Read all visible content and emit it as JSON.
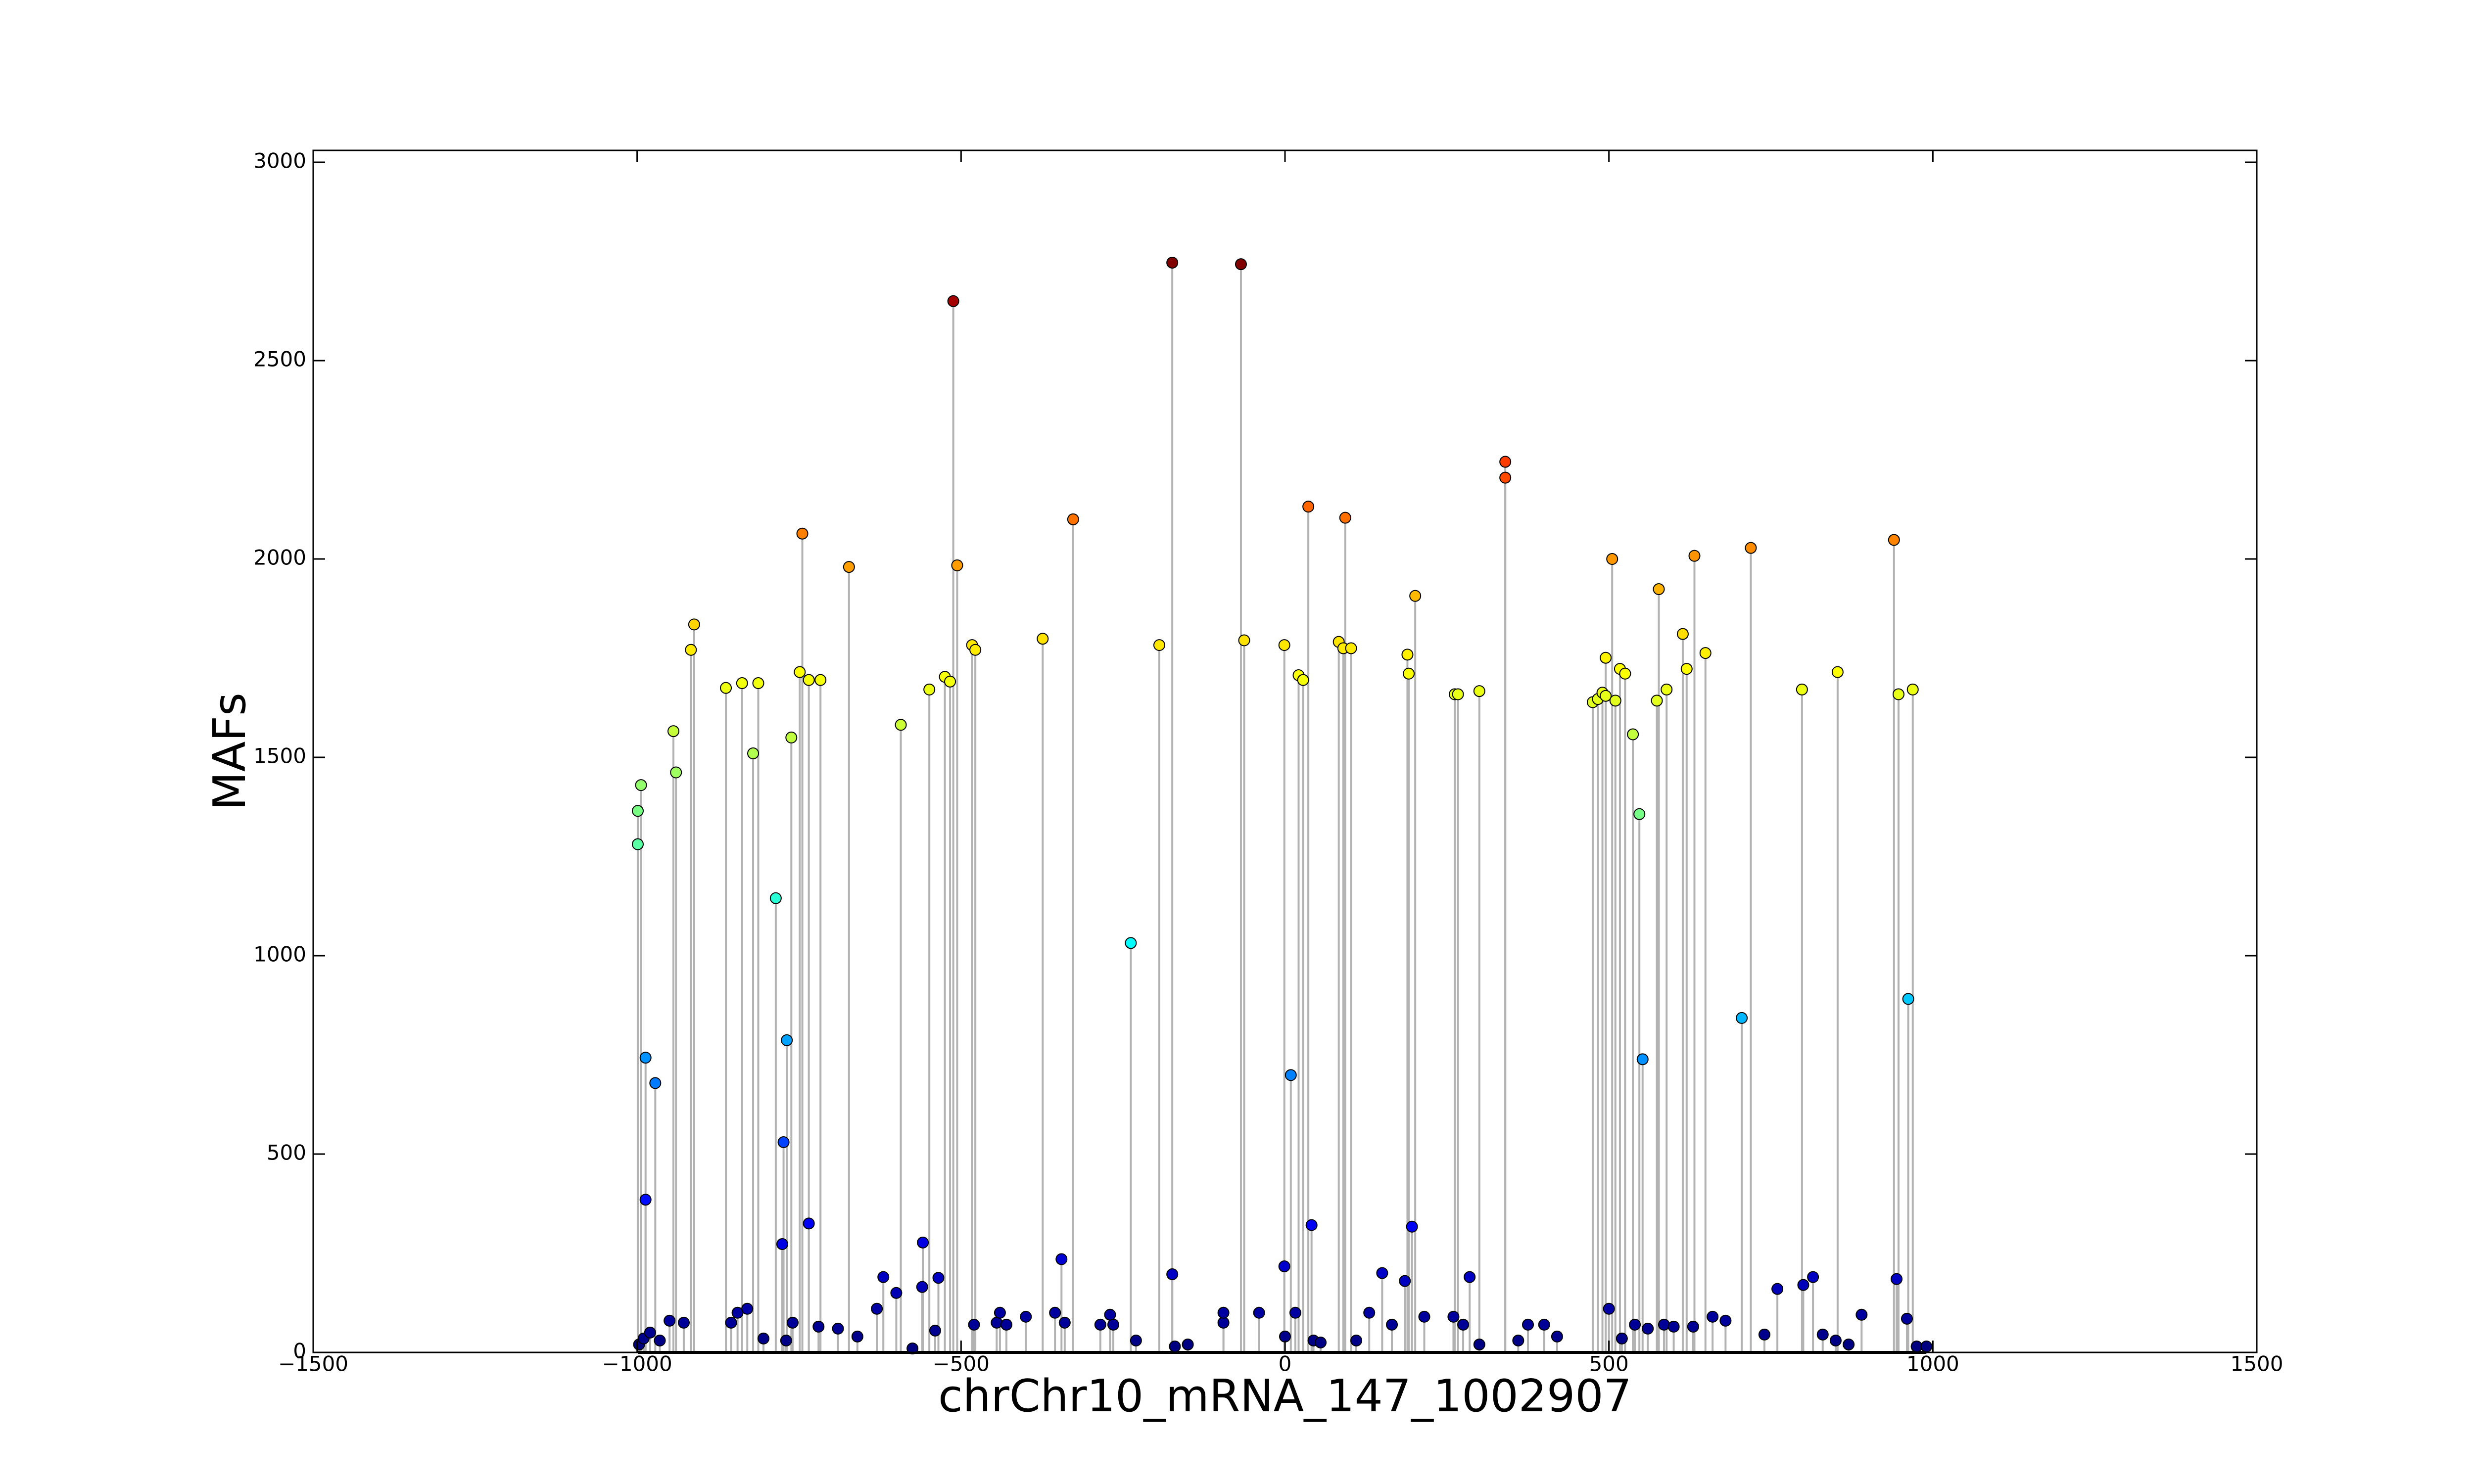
{
  "chart_data": {
    "type": "stem",
    "xlabel": "chrChr10_mRNA_147_1002907",
    "ylabel": "MAFs",
    "colormap": "jet",
    "stem_color": "#b3b3b3",
    "baseline_color": "#000000",
    "xlim": [
      -1500,
      1500
    ],
    "xticks": [
      {
        "value": -1500,
        "label": "−1500"
      },
      {
        "value": -1000,
        "label": "−1000"
      },
      {
        "value": -500,
        "label": "−500"
      },
      0,
      500,
      1000,
      1500
    ],
    "ylim": [
      0,
      3030
    ],
    "yticks": [
      0,
      500,
      1000,
      1500,
      2000,
      2500,
      3000
    ],
    "x": [
      -999,
      -999,
      -994,
      -987,
      -987,
      -972,
      -944,
      -940,
      -917,
      -912,
      -863,
      -838,
      -821,
      -813,
      -786,
      -774,
      -769,
      -762,
      -749,
      -745,
      -735,
      -717,
      -735,
      -776,
      -673,
      -593,
      -549,
      -559,
      -525,
      -517,
      -512,
      -506,
      -483,
      -478,
      -374,
      -327,
      -238,
      -194,
      -174,
      -174,
      -68,
      -63,
      -1,
      9,
      -1,
      21,
      28,
      36,
      41,
      83,
      93,
      90,
      102,
      189,
      191,
      201,
      196,
      262,
      267,
      300,
      340,
      340,
      475,
      483,
      490,
      495,
      505,
      495,
      510,
      517,
      525,
      537,
      547,
      552,
      574,
      577,
      589,
      614,
      620,
      632,
      649,
      705,
      719,
      798,
      853,
      940,
      944,
      947,
      962,
      969,
      -997,
      -990,
      -980,
      -965,
      -950,
      -928,
      -855,
      -845,
      -830,
      -805,
      -770,
      -760,
      -720,
      -690,
      -660,
      -630,
      -620,
      -600,
      -575,
      -560,
      -540,
      -535,
      -480,
      -445,
      -440,
      -430,
      -400,
      -355,
      -345,
      -340,
      -285,
      -270,
      -265,
      -230,
      -170,
      -150,
      -95,
      -95,
      -40,
      0,
      16,
      44,
      55,
      110,
      130,
      150,
      165,
      185,
      215,
      260,
      275,
      285,
      300,
      360,
      375,
      400,
      420,
      500,
      520,
      540,
      560,
      585,
      600,
      630,
      660,
      680,
      740,
      760,
      800,
      815,
      830,
      850,
      870,
      890,
      960,
      975,
      990
    ],
    "values": [
      1365,
      1281,
      1430,
      743,
      385,
      679,
      1566,
      1462,
      1771,
      1835,
      1675,
      1687,
      1510,
      1687,
      1145,
      530,
      787,
      1550,
      1715,
      2064,
      1695,
      1695,
      325,
      273,
      1980,
      1582,
      1671,
      277,
      1703,
      1691,
      2650,
      1984,
      1783,
      1771,
      1799,
      2100,
      1032,
      1783,
      2747,
      197,
      2743,
      1795,
      1783,
      699,
      217,
      1707,
      1695,
      2132,
      321,
      1791,
      2104,
      1775,
      1775,
      1759,
      1711,
      1907,
      317,
      1659,
      1659,
      1667,
      2245,
      2205,
      1639,
      1647,
      1663,
      1751,
      2000,
      1655,
      1643,
      1723,
      1711,
      1558,
      1357,
      739,
      1643,
      1924,
      1671,
      1811,
      1723,
      2008,
      1763,
      843,
      2028,
      1671,
      1715,
      2048,
      185,
      1659,
      891,
      1671,
      20,
      35,
      50,
      30,
      80,
      75,
      75,
      100,
      110,
      35,
      30,
      75,
      65,
      60,
      40,
      110,
      190,
      150,
      10,
      165,
      55,
      188,
      70,
      75,
      100,
      70,
      90,
      100,
      235,
      75,
      70,
      95,
      70,
      30,
      15,
      20,
      75,
      100,
      100,
      40,
      100,
      30,
      25,
      30,
      100,
      200,
      70,
      180,
      90,
      90,
      70,
      190,
      20,
      30,
      70,
      70,
      40,
      110,
      35,
      70,
      60,
      70,
      65,
      65,
      90,
      80,
      45,
      160,
      170,
      190,
      45,
      30,
      20,
      95,
      85,
      15,
      15
    ]
  }
}
